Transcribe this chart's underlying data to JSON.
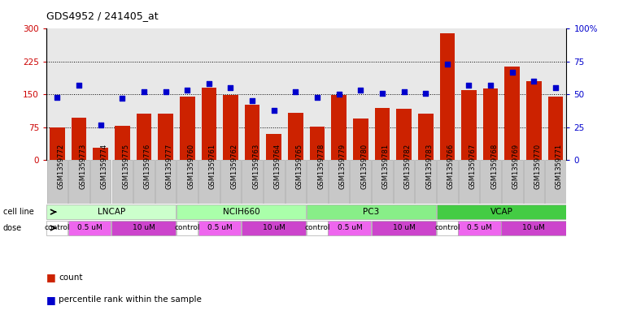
{
  "title": "GDS4952 / 241405_at",
  "samples": [
    "GSM1359772",
    "GSM1359773",
    "GSM1359774",
    "GSM1359775",
    "GSM1359776",
    "GSM1359777",
    "GSM1359760",
    "GSM1359761",
    "GSM1359762",
    "GSM1359763",
    "GSM1359764",
    "GSM1359765",
    "GSM1359778",
    "GSM1359779",
    "GSM1359780",
    "GSM1359781",
    "GSM1359782",
    "GSM1359783",
    "GSM1359766",
    "GSM1359767",
    "GSM1359768",
    "GSM1359769",
    "GSM1359770",
    "GSM1359771"
  ],
  "counts": [
    75,
    97,
    28,
    78,
    107,
    107,
    145,
    165,
    148,
    127,
    60,
    108,
    77,
    148,
    95,
    120,
    118,
    107,
    290,
    160,
    163,
    213,
    180,
    145
  ],
  "percentiles": [
    48,
    57,
    27,
    47,
    52,
    52,
    53,
    58,
    55,
    45,
    38,
    52,
    48,
    50,
    53,
    51,
    52,
    51,
    73,
    57,
    57,
    67,
    60,
    55
  ],
  "cell_line_groups": [
    {
      "name": "LNCAP",
      "start": 0,
      "end": 6,
      "color": "#ccffcc"
    },
    {
      "name": "NCIH660",
      "start": 6,
      "end": 12,
      "color": "#aaffaa"
    },
    {
      "name": "PC3",
      "start": 12,
      "end": 18,
      "color": "#88ee88"
    },
    {
      "name": "VCAP",
      "start": 18,
      "end": 24,
      "color": "#44cc44"
    }
  ],
  "dose_group_defs": [
    {
      "start": 0,
      "end": 1,
      "label": "control",
      "color": "#ffffff"
    },
    {
      "start": 1,
      "end": 3,
      "label": "0.5 uM",
      "color": "#ee66ee"
    },
    {
      "start": 3,
      "end": 6,
      "label": "10 uM",
      "color": "#cc44cc"
    },
    {
      "start": 6,
      "end": 7,
      "label": "control",
      "color": "#ffffff"
    },
    {
      "start": 7,
      "end": 9,
      "label": "0.5 uM",
      "color": "#ee66ee"
    },
    {
      "start": 9,
      "end": 12,
      "label": "10 uM",
      "color": "#cc44cc"
    },
    {
      "start": 12,
      "end": 13,
      "label": "control",
      "color": "#ffffff"
    },
    {
      "start": 13,
      "end": 15,
      "label": "0.5 uM",
      "color": "#ee66ee"
    },
    {
      "start": 15,
      "end": 18,
      "label": "10 uM",
      "color": "#cc44cc"
    },
    {
      "start": 18,
      "end": 19,
      "label": "control",
      "color": "#ffffff"
    },
    {
      "start": 19,
      "end": 21,
      "label": "0.5 uM",
      "color": "#ee66ee"
    },
    {
      "start": 21,
      "end": 24,
      "label": "10 uM",
      "color": "#cc44cc"
    }
  ],
  "bar_color": "#cc2200",
  "dot_color": "#0000cc",
  "ylim_left": [
    0,
    300
  ],
  "ylim_right": [
    0,
    100
  ],
  "yticks_left": [
    0,
    75,
    150,
    225,
    300
  ],
  "yticks_right": [
    0,
    25,
    50,
    75,
    100
  ],
  "ytick_labels_right": [
    "0",
    "25",
    "50",
    "75",
    "100%"
  ],
  "gridlines": [
    75,
    150,
    225
  ],
  "bg_color": "#ffffff",
  "plot_bg_color": "#e8e8e8",
  "sample_box_color": "#c8c8c8",
  "label_fontsize": 7,
  "tick_fontsize": 7.5,
  "sample_fontsize": 6.0
}
